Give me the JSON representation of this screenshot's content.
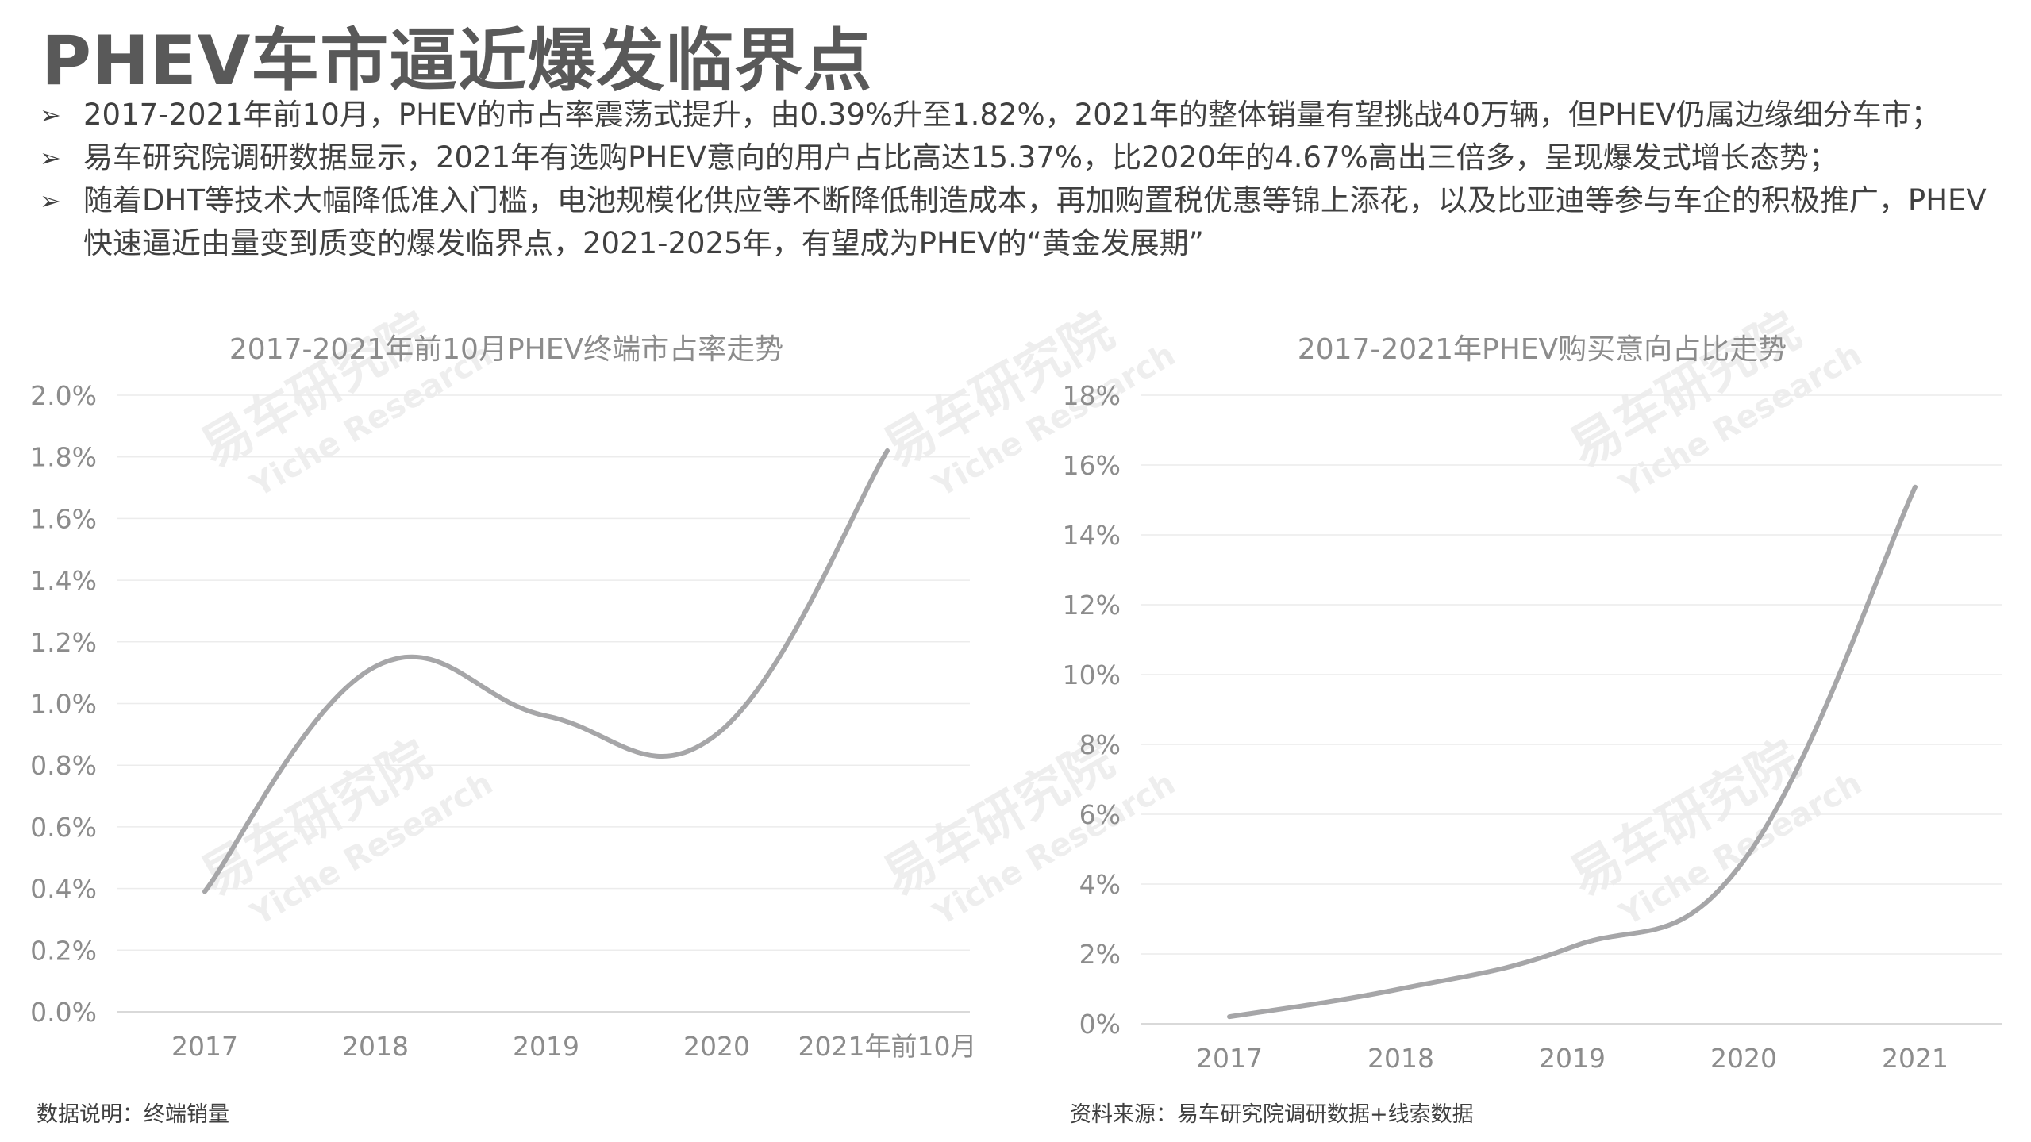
{
  "page": {
    "title": "PHEV车市逼近爆发临界点",
    "bullet_marker": "➢",
    "bullets": [
      "2017-2021年前10月，PHEV的市占率震荡式提升，由0.39%升至1.82%，2021年的整体销量有望挑战40万辆，但PHEV仍属边缘细分车市；",
      "易车研究院调研数据显示，2021年有选购PHEV意向的用户占比高达15.37%，比2020年的4.67%高出三倍多，呈现爆发式增长态势；",
      "随着DHT等技术大幅降低准入门槛，电池规模化供应等不断降低制造成本，再加购置税优惠等锦上添花，以及比亚迪等参与车企的积极推广，PHEV快速逼近由量变到质变的爆发临界点，2021-2025年，有望成为PHEV的“黄金发展期”"
    ],
    "footnote_left": "数据说明：终端销量",
    "footnote_right": "资料来源：易车研究院调研数据+线索数据",
    "watermark": {
      "cn": "易车研究院",
      "en": "Yiche Research"
    }
  },
  "chart_data": [
    {
      "type": "line",
      "title": "2017-2021年前10月PHEV终端市占率走势",
      "categories": [
        "2017",
        "2018",
        "2019",
        "2020",
        "2021年前10月"
      ],
      "series": [
        {
          "values": [
            0.39,
            1.12,
            0.96,
            0.9,
            1.82
          ]
        }
      ],
      "y_ticks": [
        "0.0%",
        "0.2%",
        "0.4%",
        "0.6%",
        "0.8%",
        "1.0%",
        "1.2%",
        "1.4%",
        "1.6%",
        "1.8%",
        "2.0%"
      ],
      "ylim": [
        0,
        2.0
      ],
      "y_unit": "%",
      "grid": true,
      "smooth": true,
      "line_color": "#a6a6a8"
    },
    {
      "type": "line",
      "title": "2017-2021年PHEV购买意向占比走势",
      "categories": [
        "2017",
        "2018",
        "2019",
        "2020",
        "2021"
      ],
      "series": [
        {
          "values": [
            0.2,
            1.0,
            2.2,
            4.67,
            15.37
          ]
        }
      ],
      "y_ticks": [
        "0%",
        "2%",
        "4%",
        "6%",
        "8%",
        "10%",
        "12%",
        "14%",
        "16%",
        "18%"
      ],
      "ylim": [
        0,
        18
      ],
      "y_unit": "%",
      "grid": true,
      "smooth": true,
      "line_color": "#a6a6a8"
    }
  ]
}
